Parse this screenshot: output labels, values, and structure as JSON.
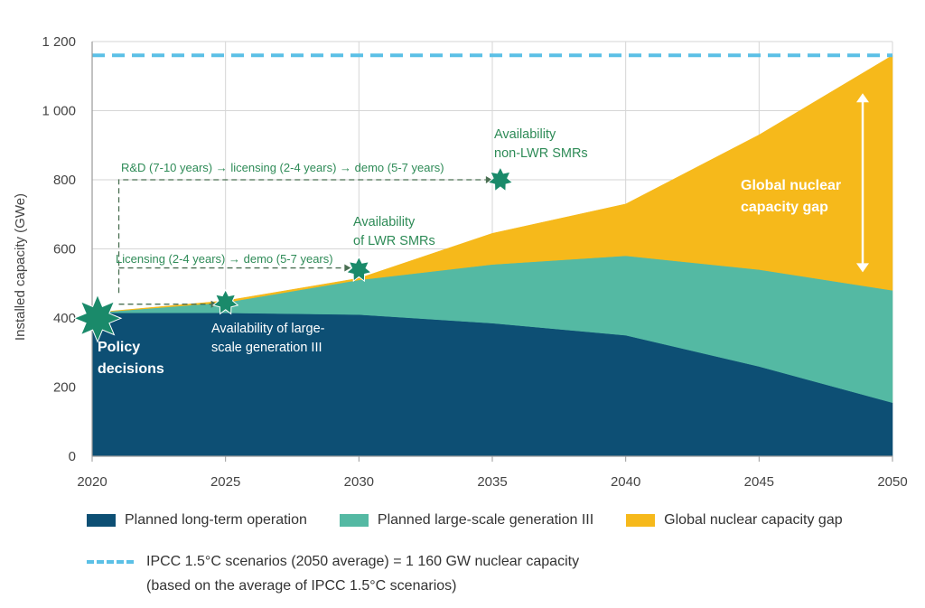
{
  "chart_data": {
    "type": "area",
    "x": [
      2020,
      2025,
      2030,
      2035,
      2040,
      2045,
      2050
    ],
    "ylabel": "Installed capacity (GWe)",
    "ylim": [
      0,
      1200
    ],
    "xlim": [
      2020,
      2050
    ],
    "y_ticks": [
      0,
      200,
      400,
      600,
      800,
      1000,
      1200
    ],
    "y_tick_labels": [
      "0",
      "200",
      "400",
      "600",
      "800",
      "1 000",
      "1 200"
    ],
    "x_tick_labels": [
      "2020",
      "2025",
      "2030",
      "2035",
      "2040",
      "2045",
      "2050"
    ],
    "grid": "horizontal",
    "series": [
      {
        "name": "Planned long-term operation",
        "color": "#0d4f74",
        "values": [
          415,
          415,
          410,
          385,
          350,
          260,
          155
        ]
      },
      {
        "name": "Planned large-scale generation III",
        "color": "#54b9a3",
        "values": [
          0,
          30,
          100,
          170,
          230,
          280,
          325
        ]
      },
      {
        "name": "Global nuclear capacity gap",
        "color": "#f6b91b",
        "values": [
          0,
          5,
          5,
          90,
          150,
          390,
          680
        ]
      }
    ],
    "reference_line": {
      "value": 1160,
      "color": "#5bc0e6"
    },
    "annotations": {
      "policy": [
        "Policy",
        "decisions"
      ],
      "gen3": [
        "Availability of large-",
        "scale generation III"
      ],
      "lwr": [
        "Availability",
        "of LWR SMRs"
      ],
      "nonlwr": [
        "Availability",
        "non-LWR SMRs"
      ],
      "path_long": "R&D (7-10 years) → licensing (2-4 years) → demo (5-7 years)",
      "path_short": "Licensing (2-4 years) → demo (5-7 years)",
      "gap": [
        "Global nuclear",
        "capacity gap"
      ]
    },
    "milestones": [
      {
        "x": 2020,
        "y": 415,
        "name": "policy-decisions"
      },
      {
        "x": 2025,
        "y": 445,
        "name": "large-scale-gen3"
      },
      {
        "x": 2030,
        "y": 540,
        "name": "lwr-smrs"
      },
      {
        "x": 2035.3,
        "y": 800,
        "name": "non-lwr-smrs"
      }
    ],
    "gap_range": [
      480,
      1160
    ]
  },
  "legend": {
    "items": [
      {
        "label": "Planned long-term operation",
        "color": "#0d4f74"
      },
      {
        "label": "Planned large-scale generation III",
        "color": "#54b9a3"
      },
      {
        "label": "Global nuclear capacity gap",
        "color": "#f6b91b"
      }
    ],
    "ref_label": "IPCC 1.5°C scenarios (2050 average) = 1 160 GW nuclear capacity",
    "ref_note": "(based on the average of IPCC 1.5°C scenarios)"
  }
}
